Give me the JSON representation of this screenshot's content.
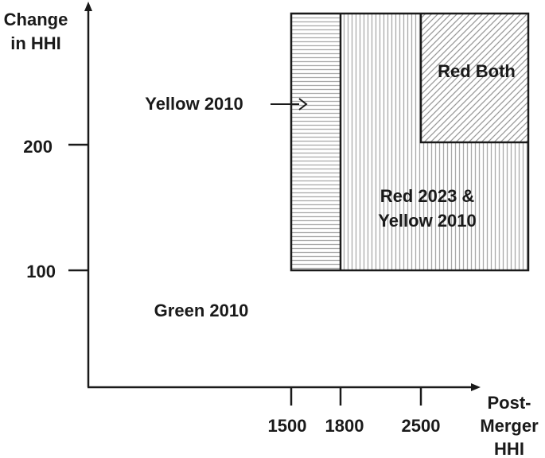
{
  "y_axis_title": [
    "Change",
    "in HHI"
  ],
  "x_axis_title": [
    "Post-",
    "Merger",
    "HHI"
  ],
  "y_ticks": [
    {
      "value": 200,
      "label": "200"
    },
    {
      "value": 100,
      "label": "100"
    }
  ],
  "x_ticks": [
    {
      "value": 1500,
      "label": "1500"
    },
    {
      "value": 1800,
      "label": "1800"
    },
    {
      "value": 2500,
      "label": "2500"
    }
  ],
  "regions": {
    "yellow_2010_band": {
      "from_hhi": 1500,
      "to_hhi": 1800,
      "min_delta": 100,
      "pattern": "horizontal-lines"
    },
    "red_2023_yellow_2010": {
      "from_hhi": 1800,
      "min_delta": 100,
      "pattern": "vertical-lines",
      "label": [
        "Red 2023 &",
        "Yellow 2010"
      ]
    },
    "red_both": {
      "from_hhi": 2500,
      "min_delta": 200,
      "pattern": "diagonal-lines",
      "label": "Red Both"
    }
  },
  "annotations": {
    "yellow_2010": "Yellow 2010",
    "green_2010": "Green 2010"
  },
  "colors": {
    "ink": "#1a1a1a",
    "hatch": "#aaaaaa",
    "background": "#ffffff"
  }
}
